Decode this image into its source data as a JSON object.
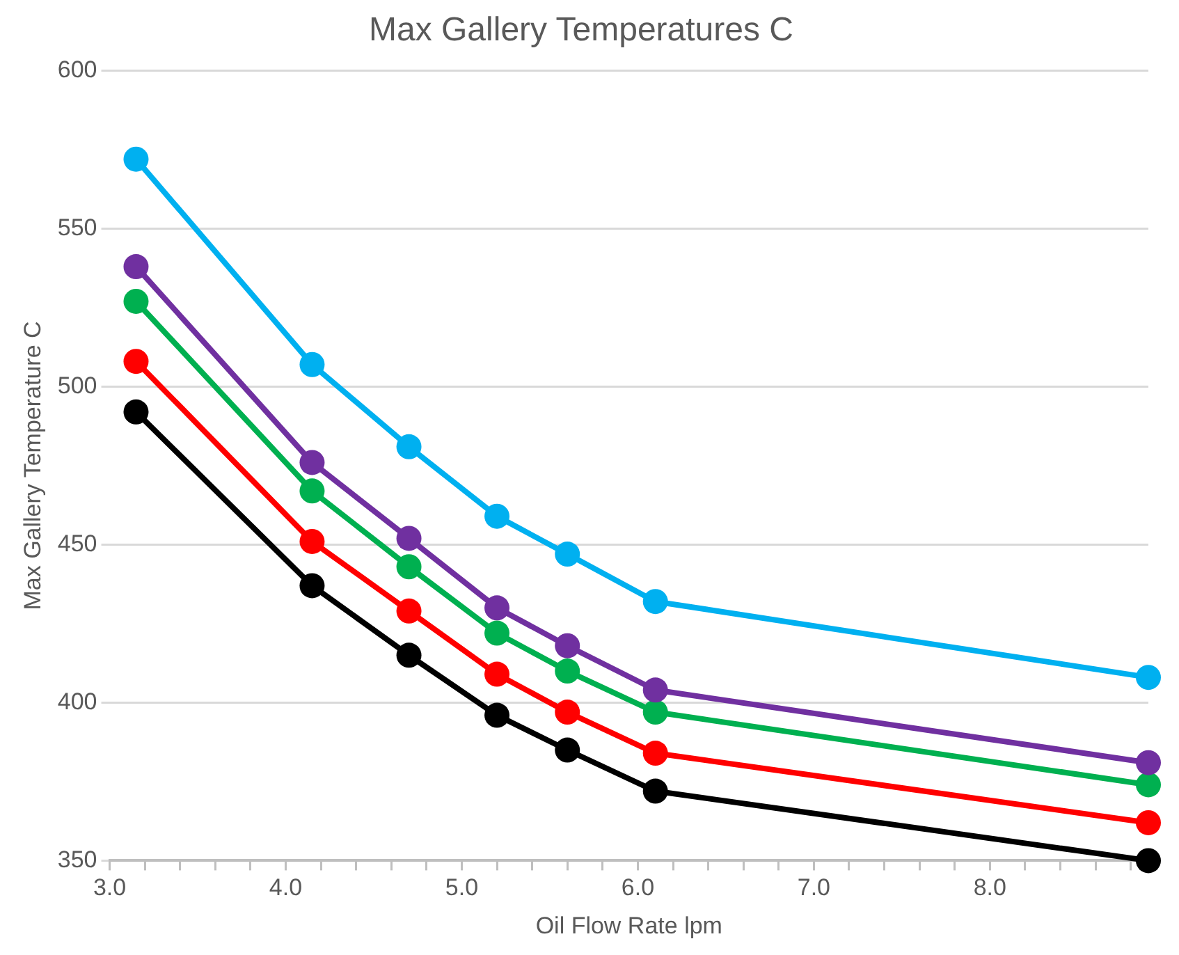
{
  "chart_data": {
    "type": "line",
    "title": "Max Gallery Temperatures C",
    "xlabel": "Oil Flow Rate lpm",
    "ylabel": "Max Gallery Temperature C",
    "x": [
      3.15,
      4.15,
      4.7,
      5.2,
      5.6,
      6.1,
      8.9
    ],
    "series": [
      {
        "color": "#00b0f0",
        "values": [
          572,
          507,
          481,
          459,
          447,
          432,
          408
        ]
      },
      {
        "color": "#7030a0",
        "values": [
          538,
          476,
          452,
          430,
          418,
          404,
          381
        ]
      },
      {
        "color": "#00b050",
        "values": [
          527,
          467,
          443,
          422,
          410,
          397,
          374
        ]
      },
      {
        "color": "#ff0000",
        "values": [
          508,
          451,
          429,
          409,
          397,
          384,
          362
        ]
      },
      {
        "color": "#000000",
        "values": [
          492,
          437,
          415,
          396,
          385,
          372,
          350
        ]
      }
    ],
    "xlim": [
      3,
      8.9
    ],
    "xticks": [
      {
        "value": 3,
        "label": "3.0"
      },
      {
        "value": 3.2,
        "label": null
      },
      {
        "value": 3.4,
        "label": null
      },
      {
        "value": 3.6,
        "label": null
      },
      {
        "value": 3.8,
        "label": null
      },
      {
        "value": 4,
        "label": "4.0"
      },
      {
        "value": 4.2,
        "label": null
      },
      {
        "value": 4.4,
        "label": null
      },
      {
        "value": 4.6,
        "label": null
      },
      {
        "value": 4.8,
        "label": null
      },
      {
        "value": 5,
        "label": "5.0"
      },
      {
        "value": 5.2,
        "label": null
      },
      {
        "value": 5.4,
        "label": null
      },
      {
        "value": 5.6,
        "label": null
      },
      {
        "value": 5.8,
        "label": null
      },
      {
        "value": 6,
        "label": "6.0"
      },
      {
        "value": 6.2,
        "label": null
      },
      {
        "value": 6.4,
        "label": null
      },
      {
        "value": 6.6,
        "label": null
      },
      {
        "value": 6.8,
        "label": null
      },
      {
        "value": 7,
        "label": "7.0"
      },
      {
        "value": 7.2,
        "label": null
      },
      {
        "value": 7.4,
        "label": null
      },
      {
        "value": 7.6,
        "label": null
      },
      {
        "value": 7.8,
        "label": null
      },
      {
        "value": 8,
        "label": "8.0"
      },
      {
        "value": 8.2,
        "label": null
      },
      {
        "value": 8.4,
        "label": null
      },
      {
        "value": 8.6,
        "label": null
      },
      {
        "value": 8.8,
        "label": null
      }
    ],
    "ylim": [
      350,
      600
    ],
    "yticks": [
      350,
      400,
      450,
      500,
      550,
      600
    ],
    "grid": "y",
    "legend": false,
    "marker": "circle",
    "line_style": "solid"
  }
}
